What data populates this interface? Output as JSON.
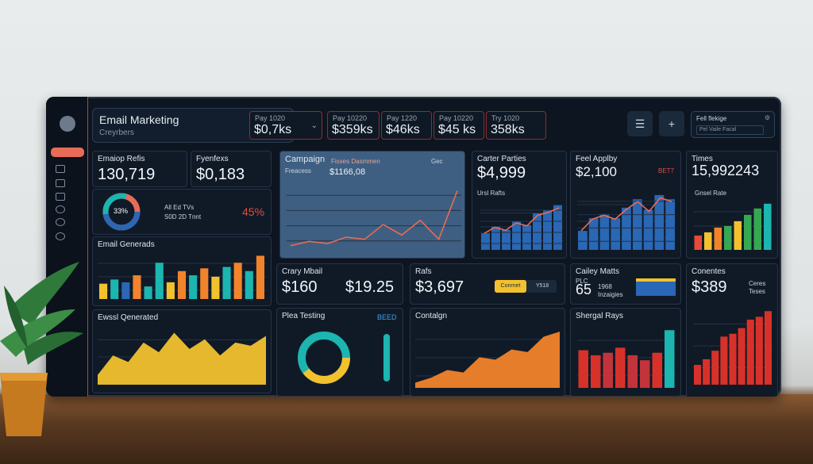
{
  "header": {
    "title": "Email Marketing",
    "subtitle": "Creyrbers"
  },
  "kpis": [
    {
      "label": "Pay 1020",
      "value": "$0,7ks"
    },
    {
      "label": "Pay 10220",
      "value": "$359ks"
    },
    {
      "label": "Pay 1220",
      "value": "$46ks"
    },
    {
      "label": "Pay 10220",
      "value": "$45 ks"
    },
    {
      "label": "Try 1020",
      "value": "358ks"
    }
  ],
  "toolbar": {
    "menu_icon": "☰",
    "add_icon": "+"
  },
  "search": {
    "title": "Fell flekige",
    "field": "Pel Vaile Facal"
  },
  "panels": {
    "p1": {
      "title": "Emaiop Refis",
      "value": "130,719"
    },
    "p2": {
      "title": "Fyenfexs",
      "value": "$0,183"
    },
    "donut": {
      "center": "33%",
      "legend1": "All Ed TVs",
      "legend2": "S0D 2D Tnnt",
      "pct": "45%"
    },
    "campaign": {
      "title": "Campaign",
      "subtitle": "Fisses Dasmmen",
      "label": "Freacess",
      "value": "$1166,08",
      "btn": "Gec"
    },
    "carter": {
      "title": "Carter Parties",
      "value": "$4,999",
      "sub": "Ursl Rafts"
    },
    "feel": {
      "title": "Feel Applby",
      "value": "$2,100",
      "badge": "BET7"
    },
    "times": {
      "title": "Times",
      "value": "15,992243",
      "sub": "Gnsel Rate"
    },
    "email_gen": {
      "title": "Email Generads"
    },
    "crary": {
      "title": "Crary Mbail",
      "value1": "$160",
      "value2": "$19.25"
    },
    "rafs": {
      "title": "Rafs",
      "value": "$3,697",
      "btn1": "Conrnet",
      "btn2": "Y518"
    },
    "cailey": {
      "title": "Cailey Matts",
      "value": "65",
      "l1": "PLC",
      "l2": "1968",
      "l3": "Inzaigies"
    },
    "conentes": {
      "title": "Conentes",
      "value": "$389",
      "l1": "Ceres",
      "l2": "Teses"
    },
    "email_gen2": {
      "title": "Ewssl Qenerated"
    },
    "plea": {
      "title": "Plea Testing",
      "badge": "BEED"
    },
    "contalgn": {
      "title": "Contalgn"
    },
    "shergal": {
      "title": "Shergal Rays"
    }
  },
  "colors": {
    "accent": "#e86b57",
    "blue": "#2a67b4",
    "yellow": "#f2c12e",
    "orange": "#f2832b",
    "teal": "#1cb5b0",
    "red": "#d8312a"
  },
  "chart_data": [
    {
      "type": "bar",
      "title": "Email Generads",
      "values": [
        22,
        28,
        24,
        34,
        18,
        52,
        24,
        40,
        34,
        44,
        32,
        46,
        52,
        40,
        62
      ],
      "colors": [
        "#f2c12e",
        "#1cb5b0",
        "#2a67b4",
        "#f2832b",
        "#1cb5b0",
        "#1cb5b0",
        "#f2c12e",
        "#f2832b",
        "#1cb5b0",
        "#f2832b",
        "#f2c12e",
        "#1cb5b0",
        "#f2832b",
        "#1cb5b0",
        "#f2832b"
      ]
    },
    {
      "type": "line",
      "title": "Campaign",
      "values": [
        2,
        4,
        3,
        6,
        5,
        12,
        7,
        14,
        5,
        28
      ]
    },
    {
      "type": "bar",
      "title": "Carter Parties",
      "values": [
        20,
        28,
        24,
        34,
        30,
        44,
        48,
        54
      ]
    },
    {
      "type": "bar",
      "title": "Feel Applby",
      "values": [
        18,
        30,
        34,
        30,
        40,
        48,
        38,
        52,
        48
      ]
    },
    {
      "type": "bar",
      "title": "Times",
      "values": [
        18,
        22,
        28,
        30,
        36,
        44,
        52,
        58
      ]
    },
    {
      "type": "area",
      "title": "Ewssl Qenerated",
      "values": [
        6,
        18,
        14,
        26,
        20,
        32,
        22,
        28,
        18,
        26,
        24,
        30
      ]
    },
    {
      "type": "area",
      "title": "Contalgn",
      "values": [
        4,
        8,
        14,
        12,
        24,
        22,
        30,
        28,
        40,
        44
      ]
    },
    {
      "type": "bar",
      "title": "Shergal Rays",
      "values": [
        30,
        26,
        28,
        32,
        26,
        22,
        28,
        46
      ]
    },
    {
      "type": "bar",
      "title": "Conentes",
      "values": [
        14,
        18,
        24,
        34,
        36,
        40,
        46,
        48,
        52
      ]
    }
  ]
}
